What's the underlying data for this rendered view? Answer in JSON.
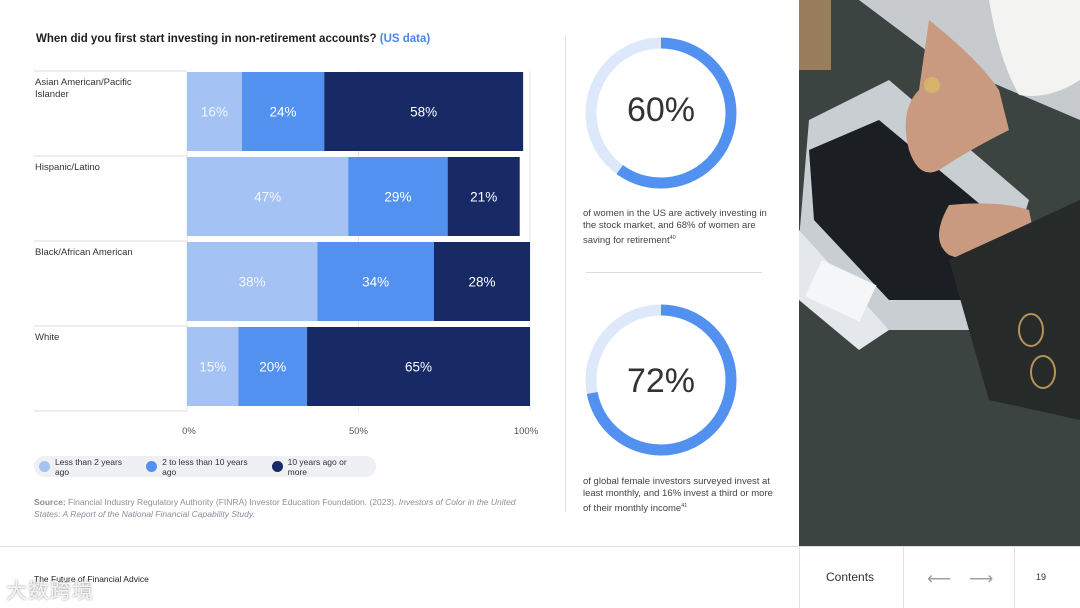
{
  "chart_data": {
    "type": "bar",
    "orientation": "horizontal",
    "stacked": true,
    "title": "When did you first start investing in non-retirement accounts?",
    "title_accent": "(US data)",
    "categories": [
      "Asian American/Pacific Islander",
      "Hispanic/Latino",
      "Black/African American",
      "White"
    ],
    "series": [
      {
        "name": "Less than 2 years ago",
        "values": [
          16,
          47,
          38,
          15
        ],
        "color": "#a4c2f4"
      },
      {
        "name": "2 to less than 10 years ago",
        "values": [
          24,
          29,
          34,
          20
        ],
        "color": "#5291f0"
      },
      {
        "name": "10 years ago or more",
        "values": [
          58,
          21,
          28,
          65
        ],
        "color": "#172a66"
      }
    ],
    "value_suffix": "%",
    "xlim": [
      0,
      100
    ],
    "x_ticks": [
      "0%",
      "50%",
      "100%"
    ],
    "legend_position": "bottom-left"
  },
  "source": {
    "label": "Source:",
    "text": "Financial Industry Regulatory Authority (FINRA) Investor Education Foundation. (2023).",
    "italic": "Investors of Color in the United States: A Report of the National Financial Capability Study."
  },
  "stats": [
    {
      "value": "60%",
      "fraction": 0.6,
      "description": "of women in the US are actively investing in the stock market, and 68% of women are saving for retirement",
      "footnote": "40"
    },
    {
      "value": "72%",
      "fraction": 0.72,
      "description": "of global female investors surveyed invest at least monthly, and 16% invest a third or more of their monthly income",
      "footnote": "41"
    }
  ],
  "colors": {
    "accent": "#4a86e8",
    "donut_track": "#dde8fb",
    "donut_fill": "#5291f0"
  },
  "footer": {
    "title": "The Future of Financial Advice",
    "contents_label": "Contents",
    "prev_icon": "⟵",
    "next_icon": "⟶",
    "page_number": "19",
    "watermark": "大数跨境"
  }
}
